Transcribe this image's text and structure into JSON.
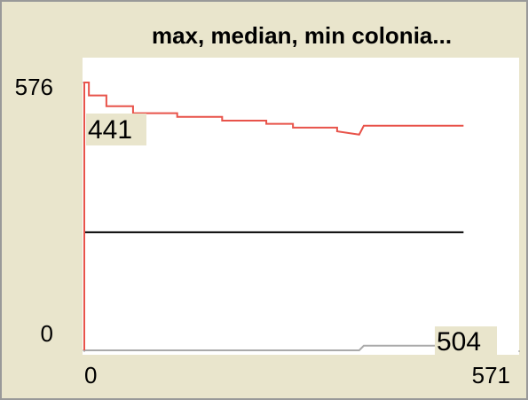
{
  "chart_data": {
    "type": "line",
    "title": "max, median, min colonia...",
    "x": [
      0,
      0,
      6,
      6,
      29,
      29,
      64,
      64,
      122,
      122,
      181,
      181,
      239,
      239,
      274,
      274,
      332,
      332,
      361,
      367,
      498
    ],
    "series": [
      {
        "color": "#e8534a",
        "values": [
          0,
          576,
          576,
          548,
          548,
          525,
          525,
          510,
          510,
          502,
          502,
          494,
          494,
          487,
          487,
          479,
          479,
          471,
          464,
          483,
          483
        ]
      },
      {
        "color": "#000000",
        "values": [
          254,
          254,
          254,
          254,
          254,
          254,
          254,
          254,
          254,
          254,
          254,
          254,
          254,
          254,
          254,
          254,
          254,
          254,
          254,
          254,
          254
        ]
      },
      {
        "color": "#aaaaaa",
        "values": [
          0,
          0,
          0,
          0,
          0,
          0,
          0,
          0,
          0,
          0,
          0,
          0,
          0,
          0,
          0,
          0,
          0,
          0,
          0,
          10,
          10
        ]
      }
    ],
    "annotations": [
      "441",
      "504"
    ],
    "xlim": [
      0,
      571
    ],
    "xticks": [
      0,
      571
    ],
    "ylim": [
      0,
      576
    ],
    "yticks": [
      0,
      576
    ]
  }
}
